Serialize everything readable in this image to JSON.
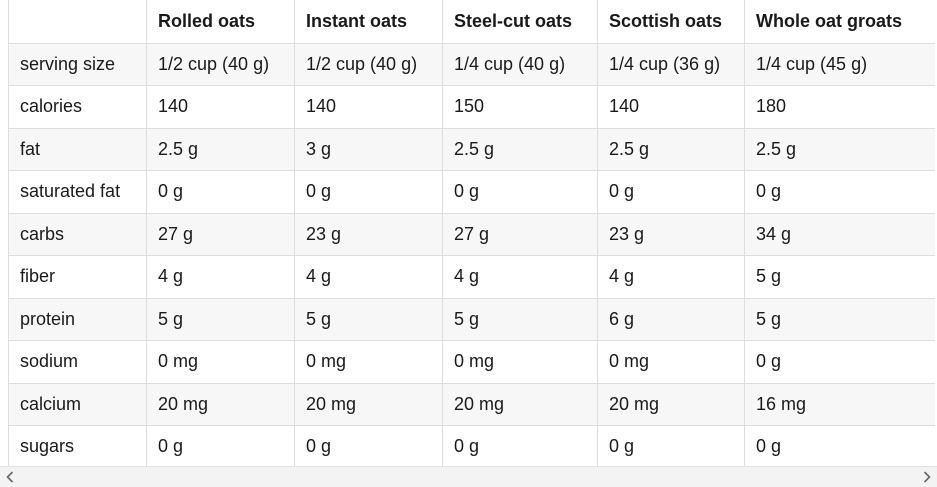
{
  "table": {
    "headers": [
      "",
      "Rolled oats",
      "Instant oats",
      "Steel-cut oats",
      "Scottish oats",
      "Whole oat groats"
    ],
    "rows": [
      [
        "serving size",
        "1/2 cup (40 g)",
        "1/2 cup (40 g)",
        "1/4 cup (40 g)",
        "1/4 cup (36 g)",
        "1/4 cup (45 g)"
      ],
      [
        "calories",
        "140",
        "140",
        "150",
        "140",
        "180"
      ],
      [
        "fat",
        "2.5 g",
        "3 g",
        "2.5 g",
        "2.5 g",
        "2.5 g"
      ],
      [
        "saturated fat",
        "0 g",
        "0 g",
        "0 g",
        "0 g",
        "0 g"
      ],
      [
        "carbs",
        "27 g",
        "23 g",
        "27 g",
        "23 g",
        "34 g"
      ],
      [
        "fiber",
        "4 g",
        "4 g",
        "4 g",
        "4 g",
        "5 g"
      ],
      [
        "protein",
        "5 g",
        "5 g",
        "5 g",
        "6 g",
        "5 g"
      ],
      [
        "sodium",
        "0 mg",
        "0 mg",
        "0 mg",
        "0 mg",
        "0 g"
      ],
      [
        "calcium",
        "20 mg",
        "20 mg",
        "20 mg",
        "20 mg",
        "16 mg"
      ],
      [
        "sugars",
        "0 g",
        "0 g",
        "0 g",
        "0 g",
        "0 g"
      ]
    ]
  },
  "scrollbar": {
    "left_icon": "chevron-left-icon",
    "right_icon": "chevron-right-icon"
  },
  "colors": {
    "border": "#dddddd",
    "stripe": "#f7f7f7",
    "text": "#1a1a1a"
  }
}
